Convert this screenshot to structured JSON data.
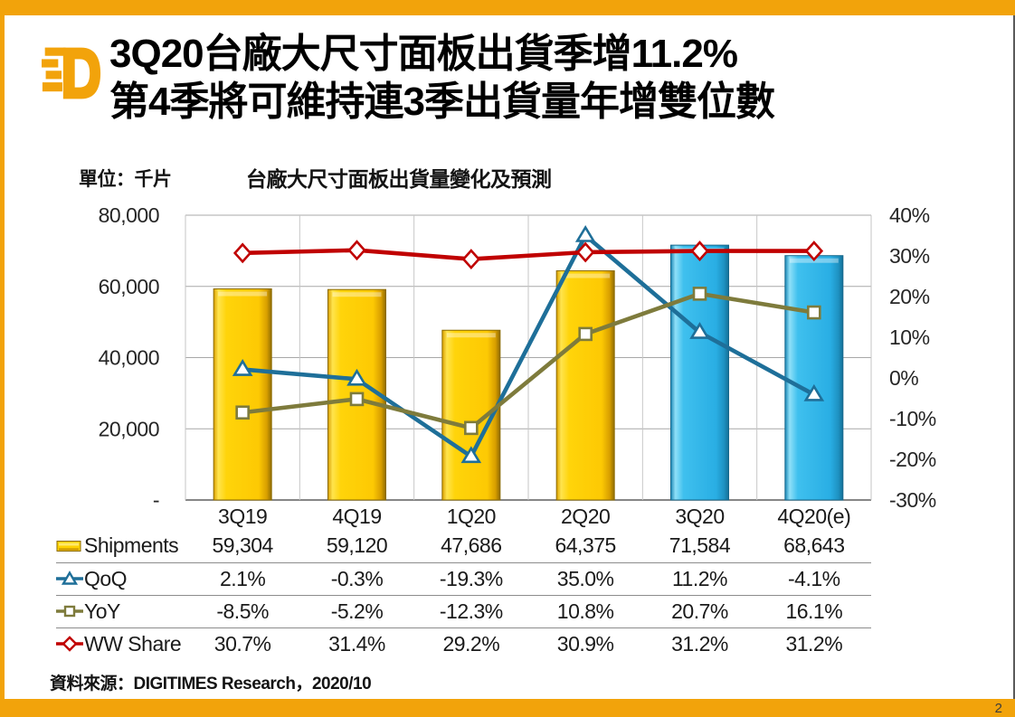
{
  "page": {
    "number": "2"
  },
  "header": {
    "logo_name": "digitimes-d-logo",
    "title_line1": "3Q20台廠大尺寸面板出貨季增11.2%",
    "title_line2": "第4季將可維持連3季出貨量年增雙位數"
  },
  "chart": {
    "unit_label": "單位：千片",
    "title": "台廠大尺寸面板出貨量變化及預測"
  },
  "source_note": "資料來源：DIGITIMES Research，2020/10",
  "colors": {
    "accent_orange": "#F2A30B",
    "bar_gold": "#FFD100",
    "bar_cyan": "#29B2E8",
    "qoq_blue": "#1E6F99",
    "yoy_olive": "#7E7B3C",
    "ww_red": "#C00000"
  },
  "chart_data": {
    "type": "bar",
    "subtype": "bar-line-combo",
    "title": "台廠大尺寸面板出貨量變化及預測",
    "categories": [
      "3Q19",
      "4Q19",
      "1Q20",
      "2Q20",
      "3Q20",
      "4Q20(e)"
    ],
    "series": [
      {
        "name": "Shipments",
        "type": "bar",
        "axis": "left",
        "values": [
          59304,
          59120,
          47686,
          64375,
          71584,
          68643
        ],
        "bar_styles": [
          "gold",
          "gold",
          "gold",
          "gold",
          "cyan",
          "cyan"
        ]
      },
      {
        "name": "QoQ",
        "type": "line",
        "marker": "triangle",
        "axis": "right",
        "color": "#1E6F99",
        "values": [
          2.1,
          -0.3,
          -19.3,
          35.0,
          11.2,
          -4.1
        ]
      },
      {
        "name": "YoY",
        "type": "line",
        "marker": "square",
        "axis": "right",
        "color": "#7E7B3C",
        "values": [
          -8.5,
          -5.2,
          -12.3,
          10.8,
          20.7,
          16.1
        ]
      },
      {
        "name": "WW Share",
        "type": "line",
        "marker": "diamond",
        "axis": "right",
        "color": "#C00000",
        "values": [
          30.7,
          31.4,
          29.2,
          30.9,
          31.2,
          31.2
        ]
      }
    ],
    "left_axis": {
      "min": 0,
      "max": 80000,
      "tick_labels": [
        "80,000",
        "60,000",
        "40,000",
        "20,000",
        "-"
      ]
    },
    "right_axis": {
      "min": -30,
      "max": 40,
      "tick_labels": [
        "40%",
        "30%",
        "20%",
        "10%",
        "0%",
        "-10%",
        "-20%",
        "-30%"
      ]
    },
    "grid": true,
    "legend_position": "table-left"
  },
  "table": {
    "columns": [
      "3Q19",
      "4Q19",
      "1Q20",
      "2Q20",
      "3Q20",
      "4Q20(e)"
    ],
    "rows": [
      {
        "label": "Shipments",
        "marker": "bar-swatch",
        "color": "#FFD100",
        "values": [
          "59,304",
          "59,120",
          "47,686",
          "64,375",
          "71,584",
          "68,643"
        ]
      },
      {
        "label": "QoQ",
        "marker": "triangle",
        "color": "#1E6F99",
        "values": [
          "2.1%",
          "-0.3%",
          "-19.3%",
          "35.0%",
          "11.2%",
          "-4.1%"
        ]
      },
      {
        "label": "YoY",
        "marker": "square",
        "color": "#7E7B3C",
        "values": [
          "-8.5%",
          "-5.2%",
          "-12.3%",
          "10.8%",
          "20.7%",
          "16.1%"
        ]
      },
      {
        "label": "WW Share",
        "marker": "diamond",
        "color": "#C00000",
        "values": [
          "30.7%",
          "31.4%",
          "29.2%",
          "30.9%",
          "31.2%",
          "31.2%"
        ]
      }
    ]
  }
}
